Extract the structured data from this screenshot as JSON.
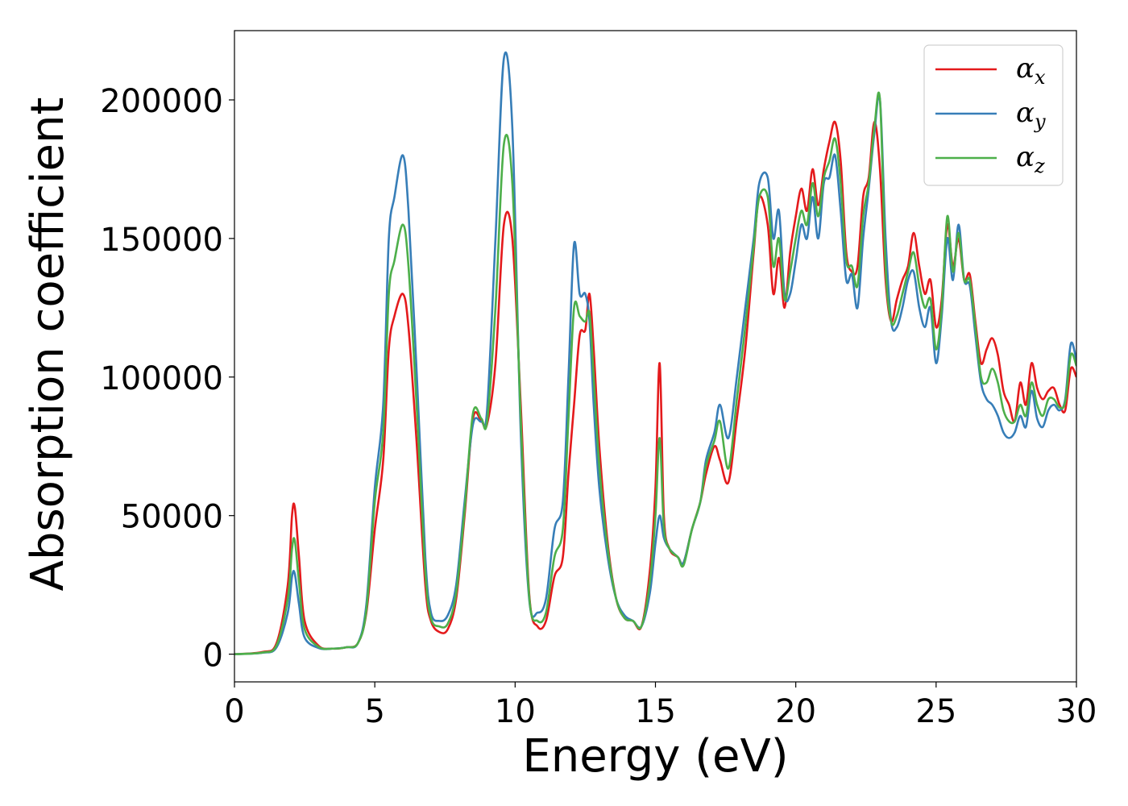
{
  "chart_data": {
    "type": "line",
    "xlabel": "Energy (eV)",
    "ylabel": "Absorption coefficient",
    "xlim": [
      0,
      30
    ],
    "ylim": [
      -10000,
      225000
    ],
    "xticks": [
      0,
      5,
      10,
      15,
      20,
      25,
      30
    ],
    "xtick_labels": [
      "0",
      "5",
      "10",
      "15",
      "20",
      "25",
      "30"
    ],
    "yticks": [
      0,
      50000,
      100000,
      150000,
      200000
    ],
    "ytick_labels": [
      "0",
      "50000",
      "100000",
      "150000",
      "200000"
    ],
    "grid": false,
    "legend_position": "top-right",
    "series": [
      {
        "name": "α",
        "subscript": "x",
        "color": "#e41a1c",
        "x": [
          0,
          1,
          1.5,
          1.9,
          2.05,
          2.15,
          2.3,
          2.5,
          3,
          3.5,
          4,
          4.4,
          4.7,
          5,
          5.3,
          5.5,
          5.7,
          6.0,
          6.2,
          6.5,
          6.8,
          7.0,
          7.3,
          7.6,
          7.9,
          8.2,
          8.5,
          8.8,
          9.0,
          9.3,
          9.6,
          9.9,
          10.2,
          10.5,
          10.8,
          11.1,
          11.4,
          11.7,
          11.9,
          12.1,
          12.3,
          12.5,
          12.65,
          12.8,
          13.0,
          13.3,
          13.6,
          13.9,
          14.2,
          14.5,
          14.8,
          15.0,
          15.15,
          15.3,
          15.5,
          15.8,
          16.0,
          16.3,
          16.6,
          16.8,
          17.1,
          17.3,
          17.6,
          17.9,
          18.2,
          18.5,
          18.7,
          19.0,
          19.2,
          19.4,
          19.6,
          19.8,
          20.0,
          20.2,
          20.4,
          20.6,
          20.8,
          21.0,
          21.2,
          21.4,
          21.6,
          21.8,
          22.0,
          22.2,
          22.4,
          22.6,
          22.8,
          23.0,
          23.2,
          23.4,
          23.6,
          23.8,
          24.0,
          24.2,
          24.4,
          24.6,
          24.8,
          25.0,
          25.2,
          25.4,
          25.6,
          25.8,
          26.0,
          26.2,
          26.4,
          26.6,
          26.8,
          27.0,
          27.2,
          27.4,
          27.6,
          27.8,
          28.0,
          28.2,
          28.4,
          28.6,
          28.8,
          29.0,
          29.2,
          29.4,
          29.6,
          29.8,
          30.0
        ],
        "y": [
          0,
          800,
          4000,
          25000,
          50000,
          53000,
          35000,
          12000,
          3000,
          2000,
          2500,
          4000,
          15000,
          45000,
          70000,
          110000,
          122000,
          130000,
          118000,
          75000,
          25000,
          12000,
          8000,
          9000,
          20000,
          50000,
          85000,
          84000,
          83000,
          105000,
          155000,
          150000,
          90000,
          22000,
          10000,
          12000,
          28000,
          35000,
          65000,
          90000,
          115000,
          117000,
          130000,
          110000,
          75000,
          40000,
          20000,
          13000,
          12000,
          10000,
          30000,
          60000,
          105000,
          50000,
          38000,
          35000,
          33000,
          45000,
          55000,
          65000,
          75000,
          70000,
          62000,
          85000,
          110000,
          145000,
          165000,
          155000,
          130000,
          143000,
          125000,
          145000,
          158000,
          168000,
          160000,
          175000,
          162000,
          175000,
          185000,
          192000,
          178000,
          145000,
          138000,
          140000,
          165000,
          172000,
          192000,
          175000,
          135000,
          120000,
          128000,
          135000,
          140000,
          152000,
          140000,
          130000,
          135000,
          118000,
          128000,
          155000,
          140000,
          150000,
          135000,
          137000,
          120000,
          105000,
          110000,
          114000,
          108000,
          95000,
          90000,
          84000,
          98000,
          90000,
          105000,
          96000,
          92000,
          95000,
          96000,
          90000,
          88000,
          103000,
          100000
        ],
        "note": ""
      },
      {
        "name": "α",
        "subscript": "y",
        "color": "#377eb8",
        "x": [
          0,
          1,
          1.5,
          1.9,
          2.05,
          2.15,
          2.3,
          2.5,
          3,
          3.5,
          4,
          4.4,
          4.7,
          5,
          5.3,
          5.5,
          5.7,
          6.0,
          6.2,
          6.5,
          6.8,
          7.0,
          7.3,
          7.6,
          7.9,
          8.2,
          8.5,
          8.8,
          9.0,
          9.3,
          9.6,
          9.9,
          10.2,
          10.5,
          10.8,
          11.1,
          11.4,
          11.7,
          11.9,
          12.1,
          12.3,
          12.5,
          12.65,
          12.8,
          13.0,
          13.3,
          13.6,
          13.9,
          14.2,
          14.5,
          14.8,
          15.0,
          15.15,
          15.3,
          15.5,
          15.8,
          16.0,
          16.3,
          16.6,
          16.8,
          17.1,
          17.3,
          17.6,
          17.9,
          18.2,
          18.5,
          18.7,
          19.0,
          19.2,
          19.4,
          19.6,
          19.8,
          20.0,
          20.2,
          20.4,
          20.6,
          20.8,
          21.0,
          21.2,
          21.4,
          21.6,
          21.8,
          22.0,
          22.2,
          22.4,
          22.6,
          22.8,
          23.0,
          23.2,
          23.4,
          23.6,
          23.8,
          24.0,
          24.2,
          24.4,
          24.6,
          24.8,
          25.0,
          25.2,
          25.4,
          25.6,
          25.8,
          26.0,
          26.2,
          26.4,
          26.6,
          26.8,
          27.0,
          27.2,
          27.4,
          27.6,
          27.8,
          28.0,
          28.2,
          28.4,
          28.6,
          28.8,
          29.0,
          29.2,
          29.4,
          29.6,
          29.8,
          30.0
        ],
        "y": [
          0,
          500,
          2500,
          15000,
          28000,
          29000,
          18000,
          6000,
          2200,
          2000,
          2500,
          4000,
          18000,
          60000,
          90000,
          150000,
          165000,
          180000,
          160000,
          100000,
          35000,
          15000,
          12000,
          14000,
          25000,
          55000,
          83000,
          84000,
          88000,
          150000,
          215000,
          190000,
          80000,
          20000,
          15000,
          20000,
          45000,
          55000,
          100000,
          148000,
          130000,
          130000,
          120000,
          90000,
          60000,
          35000,
          20000,
          14000,
          12000,
          10000,
          22000,
          40000,
          50000,
          42000,
          38000,
          35000,
          33000,
          45000,
          55000,
          70000,
          80000,
          90000,
          78000,
          100000,
          125000,
          150000,
          170000,
          172000,
          150000,
          160000,
          130000,
          130000,
          142000,
          155000,
          150000,
          165000,
          150000,
          170000,
          172000,
          180000,
          160000,
          135000,
          137000,
          125000,
          150000,
          168000,
          188000,
          200000,
          150000,
          120000,
          118000,
          125000,
          135000,
          138000,
          125000,
          118000,
          125000,
          105000,
          122000,
          150000,
          135000,
          155000,
          135000,
          133000,
          115000,
          98000,
          92000,
          90000,
          86000,
          80000,
          78000,
          80000,
          86000,
          82000,
          95000,
          85000,
          82000,
          88000,
          90000,
          88000,
          92000,
          112000,
          106000
        ],
        "note": ""
      },
      {
        "name": "α",
        "subscript": "z",
        "color": "#4daf4a",
        "x": [
          0,
          1,
          1.5,
          1.9,
          2.05,
          2.15,
          2.3,
          2.5,
          3,
          3.5,
          4,
          4.4,
          4.7,
          5,
          5.3,
          5.5,
          5.7,
          6.0,
          6.2,
          6.5,
          6.8,
          7.0,
          7.3,
          7.6,
          7.9,
          8.2,
          8.5,
          8.8,
          9.0,
          9.3,
          9.6,
          9.9,
          10.2,
          10.5,
          10.8,
          11.1,
          11.4,
          11.7,
          11.9,
          12.1,
          12.3,
          12.5,
          12.65,
          12.8,
          13.0,
          13.3,
          13.6,
          13.9,
          14.2,
          14.5,
          14.8,
          15.0,
          15.15,
          15.3,
          15.5,
          15.8,
          16.0,
          16.3,
          16.6,
          16.8,
          17.1,
          17.3,
          17.6,
          17.9,
          18.2,
          18.5,
          18.7,
          19.0,
          19.2,
          19.4,
          19.6,
          19.8,
          20.0,
          20.2,
          20.4,
          20.6,
          20.8,
          21.0,
          21.2,
          21.4,
          21.6,
          21.8,
          22.0,
          22.2,
          22.4,
          22.6,
          22.8,
          23.0,
          23.2,
          23.4,
          23.6,
          23.8,
          24.0,
          24.2,
          24.4,
          24.6,
          24.8,
          25.0,
          25.2,
          25.4,
          25.6,
          25.8,
          26.0,
          26.2,
          26.4,
          26.6,
          26.8,
          27.0,
          27.2,
          27.4,
          27.6,
          27.8,
          28.0,
          28.2,
          28.4,
          28.6,
          28.8,
          29.0,
          29.2,
          29.4,
          29.6,
          29.8,
          30.0
        ],
        "y": [
          0,
          600,
          3200,
          20000,
          38000,
          41000,
          26000,
          9000,
          2600,
          2000,
          2500,
          4000,
          16000,
          55000,
          80000,
          130000,
          142000,
          155000,
          140000,
          88000,
          30000,
          13000,
          10000,
          11000,
          22000,
          52000,
          87000,
          85000,
          84000,
          125000,
          184000,
          170000,
          85000,
          21000,
          12000,
          15000,
          35000,
          45000,
          85000,
          125000,
          122000,
          120000,
          123000,
          100000,
          68000,
          38000,
          20000,
          13000,
          12000,
          10000,
          26000,
          50000,
          78000,
          46000,
          38000,
          35000,
          32000,
          45000,
          55000,
          68000,
          77000,
          84000,
          67000,
          92000,
          118000,
          147000,
          165000,
          165000,
          140000,
          150000,
          128000,
          138000,
          150000,
          160000,
          155000,
          170000,
          158000,
          172000,
          178000,
          186000,
          170000,
          142000,
          140000,
          133000,
          158000,
          170000,
          190000,
          200000,
          140000,
          120000,
          122000,
          130000,
          138000,
          145000,
          133000,
          125000,
          128000,
          110000,
          125000,
          158000,
          138000,
          152000,
          135000,
          135000,
          118000,
          100000,
          98000,
          103000,
          98000,
          88000,
          84000,
          84000,
          90000,
          86000,
          98000,
          90000,
          86000,
          92000,
          92000,
          89000,
          91000,
          108000,
          104000
        ],
        "note": ""
      }
    ]
  }
}
